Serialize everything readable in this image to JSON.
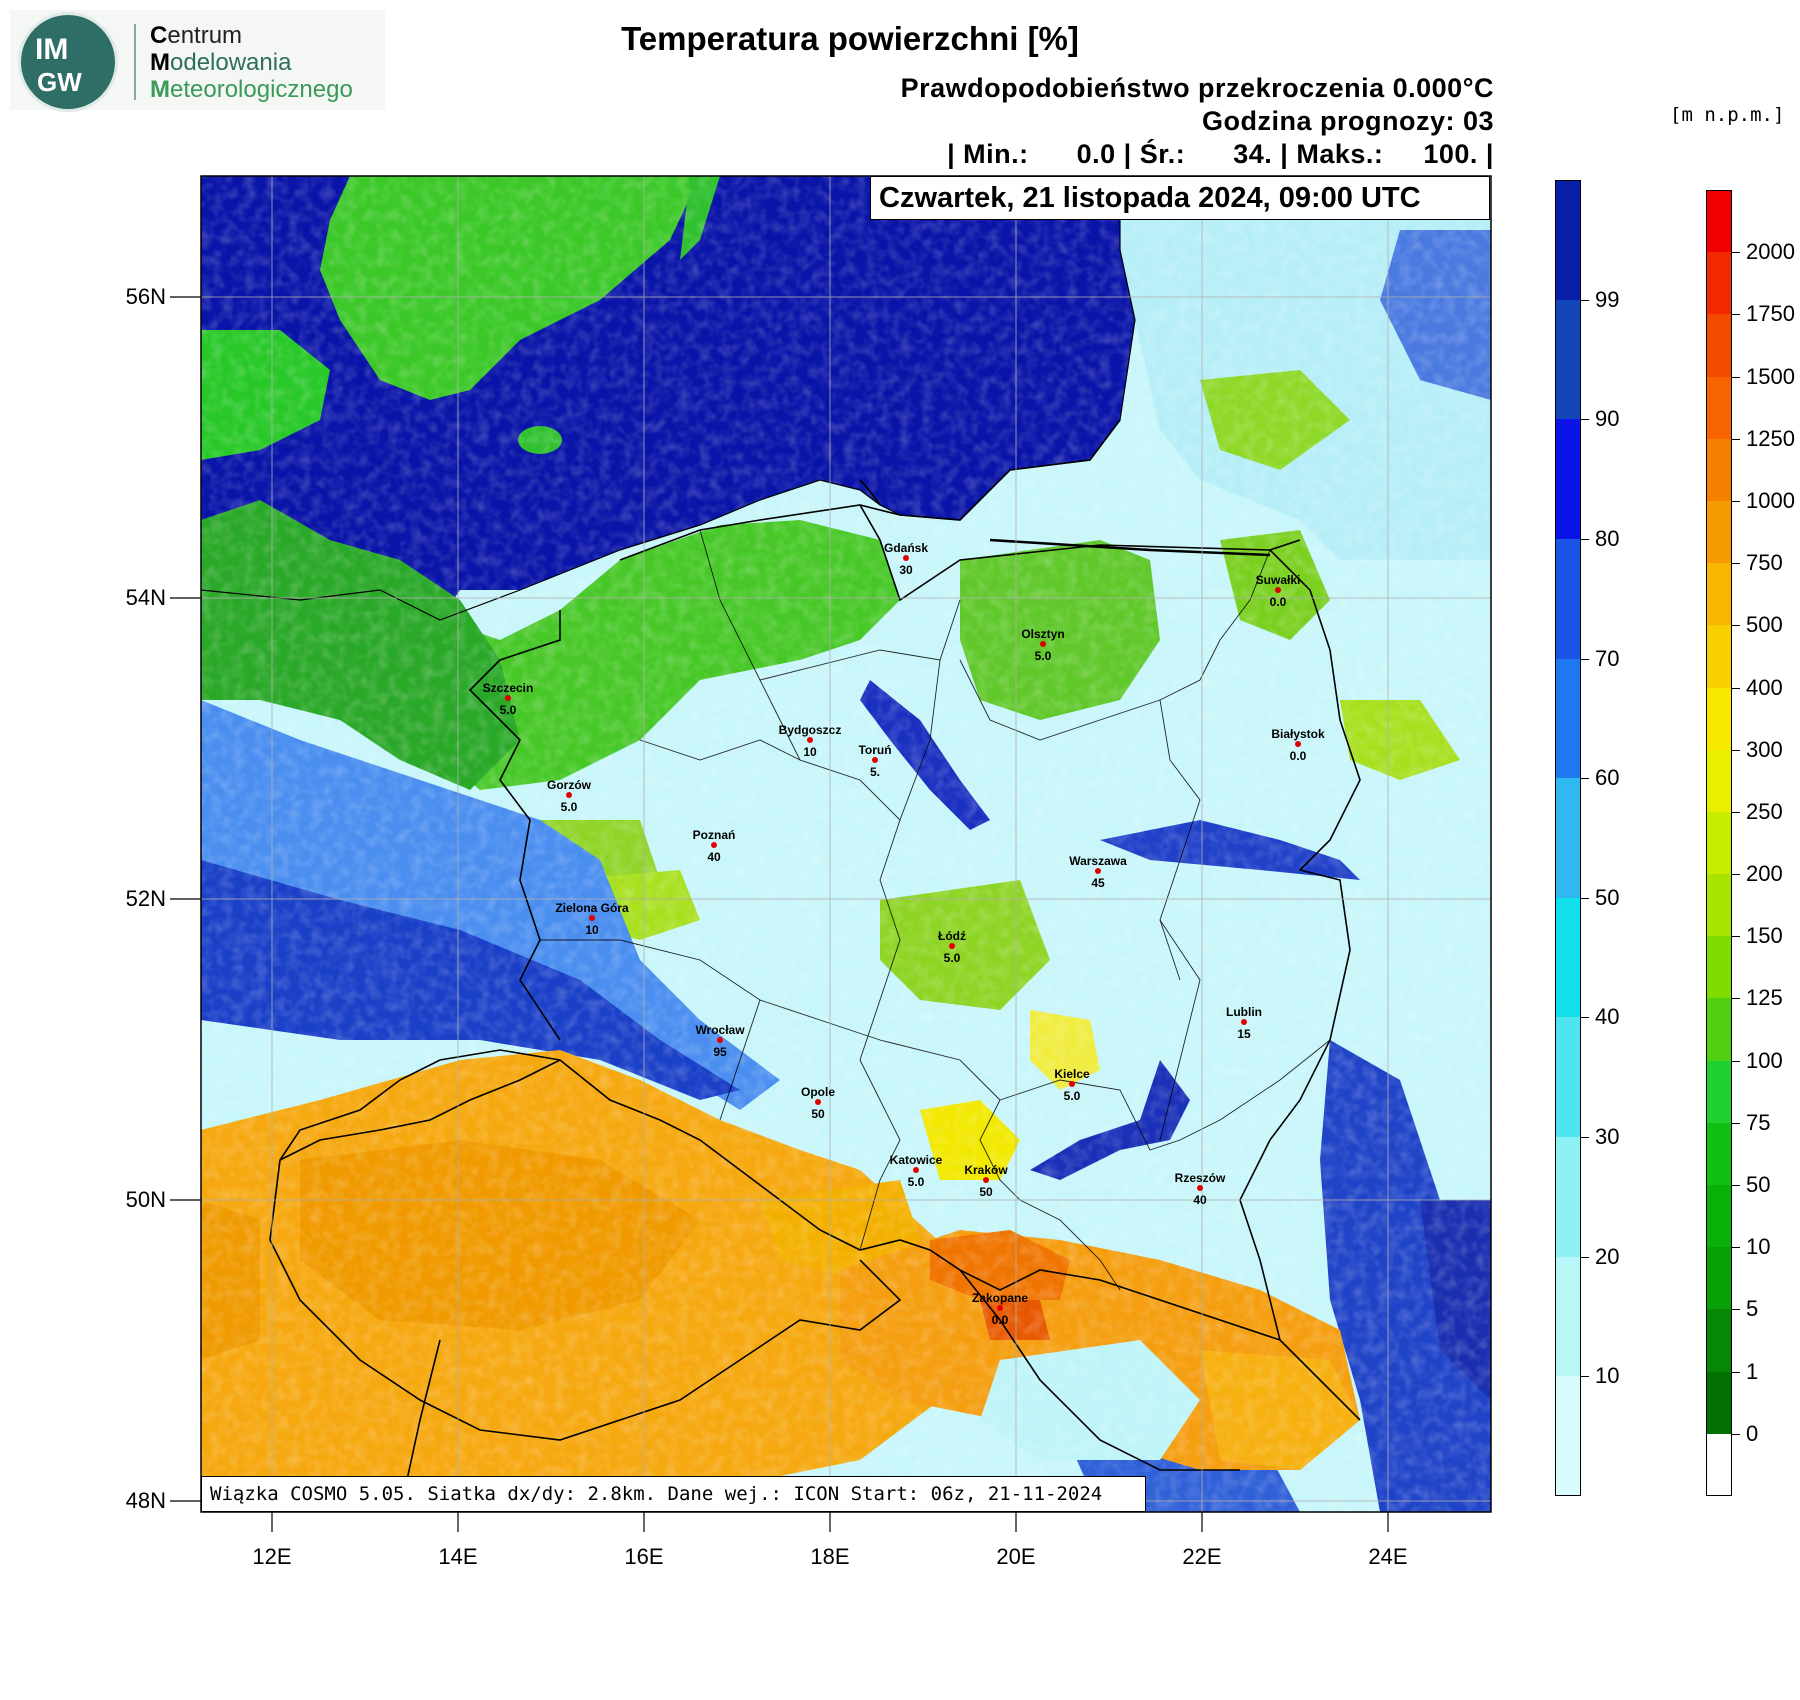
{
  "logo": {
    "badge_top": "IM",
    "badge_bottom": "GW",
    "line1_initial": "C",
    "line1_rest": "entrum",
    "line2_initial": "M",
    "line2_rest": "odelowania",
    "line3_initial": "M",
    "line3_rest": "eteorologicznego"
  },
  "title": "Temperatura powierzchni [%]",
  "header": {
    "line1": "Prawdopodobieństwo przekroczenia 0.000°C",
    "line2": "Godzina prognozy: 03",
    "line3": "| Min.:      0.0 | Śr.:      34. | Maks.:     100. |"
  },
  "date": "Czwartek, 21 listopada 2024, 09:00 UTC",
  "footer": "Wiązka COSMO 5.05. Siatka dx/dy: 2.8km. Dane wej.: ICON Start: 06z, 21-11-2024",
  "axes": {
    "lat_labels": [
      "56N",
      "54N",
      "52N",
      "50N",
      "48N"
    ],
    "lon_labels": [
      "12E",
      "14E",
      "16E",
      "18E",
      "20E",
      "22E",
      "24E"
    ]
  },
  "prob_colorbar": {
    "labels": [
      "99",
      "90",
      "80",
      "70",
      "60",
      "50",
      "40",
      "30",
      "20",
      "10"
    ],
    "colors": [
      "#0a1fa8",
      "#1446b8",
      "#0a14e6",
      "#1a55e8",
      "#1f78f0",
      "#30b8f0",
      "#10e0ea",
      "#4de6f0",
      "#8ef0f4",
      "#b8f6f8",
      "#d8fbfc"
    ]
  },
  "elev_colorbar": {
    "unit": "[m n.p.m.]",
    "labels": [
      "2000",
      "1750",
      "1500",
      "1250",
      "1000",
      "750",
      "500",
      "400",
      "300",
      "250",
      "200",
      "150",
      "125",
      "100",
      "75",
      "50",
      "10",
      "5",
      "1",
      "0"
    ],
    "colors": [
      "#f00000",
      "#f22800",
      "#f44a00",
      "#f56400",
      "#f58000",
      "#f59a00",
      "#f7b600",
      "#f8d000",
      "#f8e800",
      "#e8f000",
      "#c8ec00",
      "#a8e400",
      "#80dc00",
      "#50d010",
      "#20d030",
      "#10c010",
      "#08b008",
      "#07a007",
      "#068806",
      "#037003",
      "#ffffff"
    ]
  },
  "cities": [
    {
      "name": "Gdańsk",
      "value": "30"
    },
    {
      "name": "Suwałki",
      "value": "0.0"
    },
    {
      "name": "Olsztyn",
      "value": "5.0"
    },
    {
      "name": "Szczecin",
      "value": "5.0"
    },
    {
      "name": "Bydgoszcz",
      "value": "10"
    },
    {
      "name": "Toruń",
      "value": "5."
    },
    {
      "name": "Białystok",
      "value": "0.0"
    },
    {
      "name": "Gorzów",
      "value": "5.0"
    },
    {
      "name": "Poznań",
      "value": "40"
    },
    {
      "name": "Warszawa",
      "value": "45"
    },
    {
      "name": "Zielona Góra",
      "value": "10"
    },
    {
      "name": "Łódź",
      "value": "5.0"
    },
    {
      "name": "Lublin",
      "value": "15"
    },
    {
      "name": "Wrocław",
      "value": "95"
    },
    {
      "name": "Kielce",
      "value": "5.0"
    },
    {
      "name": "Opole",
      "value": "50"
    },
    {
      "name": "Katowice",
      "value": "5.0"
    },
    {
      "name": "Kraków",
      "value": "50"
    },
    {
      "name": "Rzeszów",
      "value": "40"
    },
    {
      "name": "Zakopane",
      "value": "0.0"
    }
  ]
}
